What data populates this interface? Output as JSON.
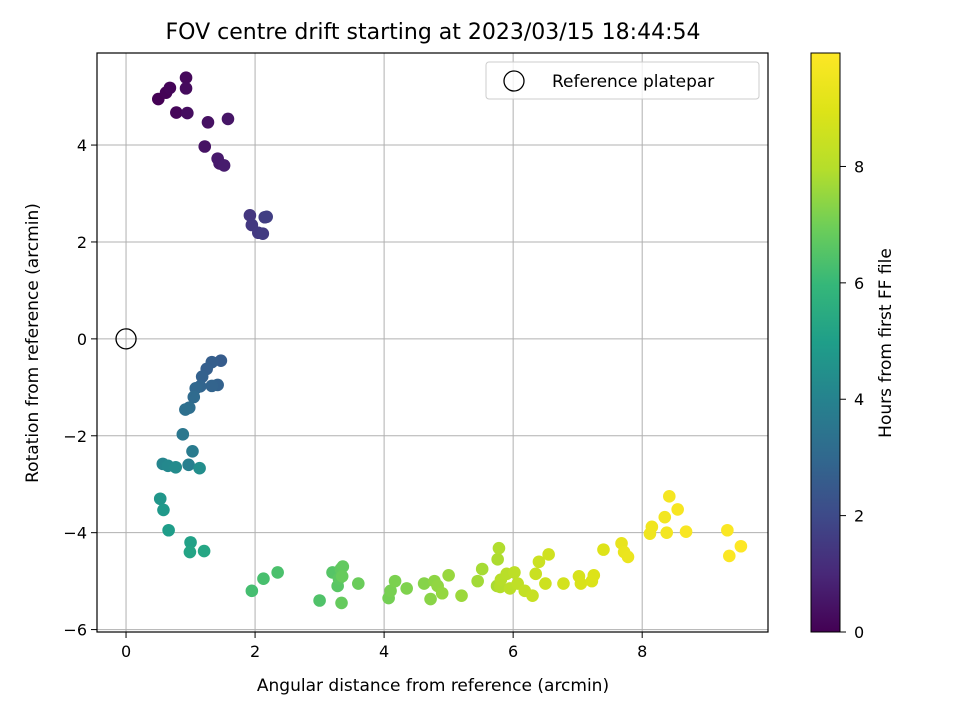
{
  "chart_data": {
    "type": "scatter",
    "title": "FOV centre drift starting at 2023/03/15 18:44:54",
    "xlabel": "Angular distance from reference (arcmin)",
    "ylabel": "Rotation from reference (arcmin)",
    "xlim": [
      -0.45,
      9.95
    ],
    "ylim": [
      -6.05,
      5.9
    ],
    "xticks": [
      0,
      2,
      4,
      6,
      8
    ],
    "yticks": [
      -6,
      -4,
      -2,
      0,
      2,
      4
    ],
    "grid": true,
    "legend": {
      "placement": "top-right",
      "entries": [
        "Reference platepar"
      ]
    },
    "reference_point": {
      "x": 0,
      "y": 0,
      "label": "Reference platepar"
    },
    "colorbar": {
      "label": "Hours from first FF file",
      "colormap": "viridis",
      "range": [
        0,
        9.95
      ],
      "ticks": [
        0,
        2,
        4,
        6,
        8
      ]
    },
    "series": [
      {
        "x": [
          0.5,
          0.62,
          0.68,
          0.78,
          0.93,
          0.93,
          0.95,
          1.27,
          1.22,
          1.58,
          1.45,
          1.42,
          1.52,
          1.92,
          1.95,
          2.05,
          2.12,
          2.15,
          2.18,
          1.47,
          1.33,
          1.25,
          1.18,
          1.42,
          1.33,
          1.15,
          1.08,
          1.05,
          0.98,
          0.92,
          0.88,
          1.03,
          0.97,
          0.57,
          0.65,
          0.77,
          1.14,
          0.53,
          0.58,
          0.66,
          1.0,
          0.99,
          1.21,
          1.95,
          2.13,
          2.35,
          3.0,
          3.2,
          3.28,
          3.3,
          3.33,
          3.36,
          3.34,
          3.35,
          3.6,
          4.07,
          4.1,
          4.17,
          4.35,
          4.62,
          4.72,
          4.78,
          4.83,
          4.9,
          5.0,
          5.2,
          5.45,
          5.52,
          5.75,
          5.76,
          5.78,
          5.8,
          5.81,
          5.9,
          5.95,
          6.02,
          6.07,
          6.18,
          6.3,
          6.35,
          6.4,
          6.5,
          6.55,
          6.78,
          7.02,
          7.05,
          7.22,
          7.25,
          7.4,
          7.68,
          7.72,
          7.78,
          8.12,
          8.15,
          8.35,
          8.38,
          8.42,
          8.55,
          8.68,
          9.32,
          9.35,
          9.53
        ],
        "y": [
          4.95,
          5.08,
          5.18,
          4.67,
          5.39,
          5.17,
          4.66,
          4.47,
          3.97,
          4.54,
          3.62,
          3.72,
          3.58,
          2.55,
          2.35,
          2.19,
          2.17,
          2.51,
          2.52,
          -0.45,
          -0.48,
          -0.62,
          -0.78,
          -0.95,
          -0.97,
          -0.98,
          -1.02,
          -1.2,
          -1.42,
          -1.46,
          -1.97,
          -2.32,
          -2.6,
          -2.58,
          -2.62,
          -2.65,
          -2.67,
          -3.3,
          -3.53,
          -3.95,
          -4.2,
          -4.4,
          -4.38,
          -5.2,
          -4.95,
          -4.82,
          -5.4,
          -4.82,
          -5.1,
          -4.95,
          -4.75,
          -4.7,
          -5.45,
          -4.9,
          -5.05,
          -5.35,
          -5.2,
          -5.0,
          -5.15,
          -5.05,
          -5.37,
          -5.0,
          -5.1,
          -5.25,
          -4.88,
          -5.3,
          -5.0,
          -4.75,
          -5.1,
          -4.55,
          -4.32,
          -5.12,
          -4.97,
          -4.85,
          -5.15,
          -4.82,
          -5.05,
          -5.2,
          -5.3,
          -4.85,
          -4.6,
          -5.05,
          -4.45,
          -5.05,
          -4.9,
          -5.05,
          -5.0,
          -4.88,
          -4.35,
          -4.22,
          -4.4,
          -4.5,
          -4.02,
          -3.88,
          -3.68,
          -4.0,
          -3.25,
          -3.52,
          -3.98,
          -3.95,
          -4.48,
          -4.28
        ],
        "c": [
          0.0,
          0.05,
          0.1,
          0.15,
          0.2,
          0.25,
          0.3,
          0.4,
          0.45,
          0.5,
          0.6,
          0.65,
          0.7,
          1.4,
          1.45,
          1.5,
          1.55,
          1.6,
          1.65,
          2.6,
          2.65,
          2.7,
          2.75,
          2.8,
          2.85,
          2.9,
          3.0,
          3.1,
          3.2,
          3.3,
          3.55,
          3.7,
          3.85,
          4.1,
          4.2,
          4.3,
          4.4,
          4.7,
          4.8,
          4.95,
          5.1,
          5.2,
          5.3,
          6.25,
          6.3,
          6.35,
          6.45,
          6.55,
          6.6,
          6.65,
          6.7,
          6.75,
          6.8,
          6.85,
          6.9,
          7.05,
          7.1,
          7.15,
          7.2,
          7.3,
          7.35,
          7.4,
          7.45,
          7.5,
          7.55,
          7.6,
          7.7,
          7.75,
          7.8,
          7.85,
          7.9,
          7.95,
          8.0,
          8.05,
          8.1,
          8.15,
          8.2,
          8.3,
          8.4,
          8.45,
          8.5,
          8.55,
          8.6,
          8.7,
          8.8,
          8.85,
          8.9,
          8.95,
          9.0,
          9.3,
          9.35,
          9.4,
          9.5,
          9.55,
          9.6,
          9.65,
          9.7,
          9.75,
          9.8,
          9.85,
          9.9,
          9.95
        ]
      }
    ]
  }
}
